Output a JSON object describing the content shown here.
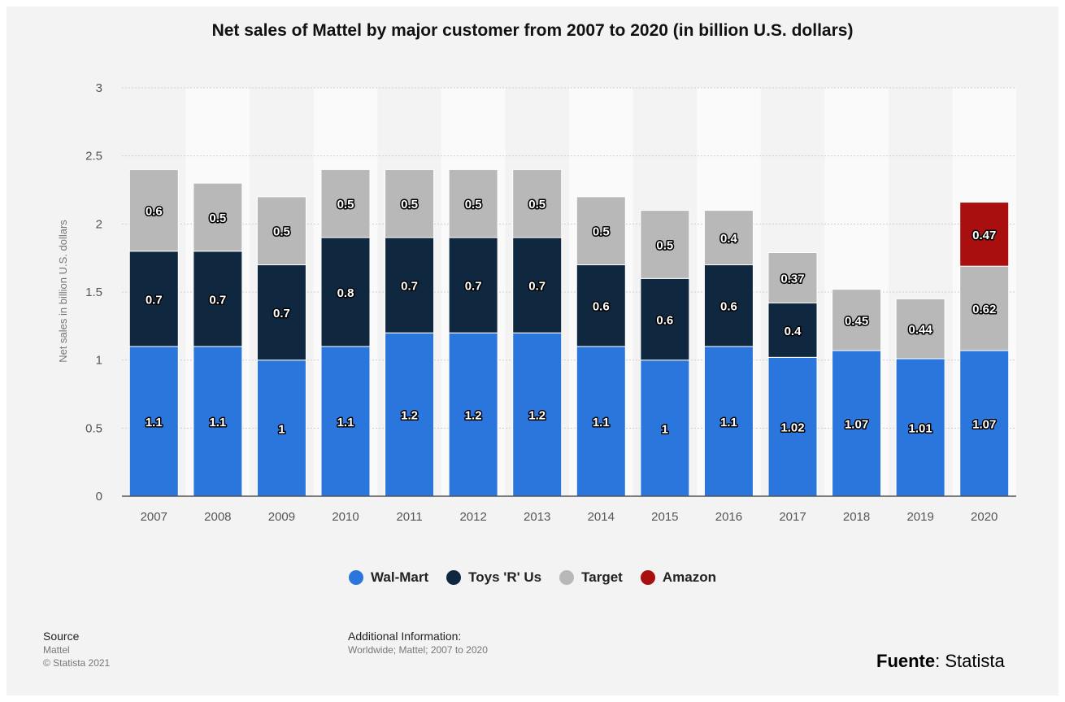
{
  "chart_data": {
    "type": "bar",
    "stacked": true,
    "title": "Net sales of Mattel by major customer from 2007 to 2020 (in billion U.S. dollars)",
    "xlabel": "",
    "ylabel": "Net sales in billion U.S. dollars",
    "ylim": [
      0,
      3
    ],
    "yticks": [
      "0",
      "0.5",
      "1",
      "1.5",
      "2",
      "2.5",
      "3"
    ],
    "grid": true,
    "legend_position": "bottom",
    "categories": [
      "2007",
      "2008",
      "2009",
      "2010",
      "2011",
      "2012",
      "2013",
      "2014",
      "2015",
      "2016",
      "2017",
      "2018",
      "2019",
      "2020"
    ],
    "series": [
      {
        "name": "Wal-Mart",
        "color": "#2a76dd",
        "values": [
          1.1,
          1.1,
          1,
          1.1,
          1.2,
          1.2,
          1.2,
          1.1,
          1,
          1.1,
          1.02,
          1.07,
          1.01,
          1.07
        ],
        "labels": [
          "1.1",
          "1.1",
          "1",
          "1.1",
          "1.2",
          "1.2",
          "1.2",
          "1.1",
          "1",
          "1.1",
          "1.02",
          "1.07",
          "1.01",
          "1.07"
        ]
      },
      {
        "name": "Toys 'R' Us",
        "color": "#0f2840",
        "values": [
          0.7,
          0.7,
          0.7,
          0.8,
          0.7,
          0.7,
          0.7,
          0.6,
          0.6,
          0.6,
          0.4,
          null,
          null,
          null
        ],
        "labels": [
          "0.7",
          "0.7",
          "0.7",
          "0.8",
          "0.7",
          "0.7",
          "0.7",
          "0.6",
          "0.6",
          "0.6",
          "0.4",
          "",
          "",
          ""
        ]
      },
      {
        "name": "Target",
        "color": "#b8b8b8",
        "values": [
          0.6,
          0.5,
          0.5,
          0.5,
          0.5,
          0.5,
          0.5,
          0.5,
          0.5,
          0.4,
          0.37,
          0.45,
          0.44,
          0.62
        ],
        "labels": [
          "0.6",
          "0.5",
          "0.5",
          "0.5",
          "0.5",
          "0.5",
          "0.5",
          "0.5",
          "0.5",
          "0.4",
          "0.37",
          "0.45",
          "0.44",
          "0.62"
        ]
      },
      {
        "name": "Amazon",
        "color": "#a90f0f",
        "values": [
          null,
          null,
          null,
          null,
          null,
          null,
          null,
          null,
          null,
          null,
          null,
          null,
          null,
          0.47
        ],
        "labels": [
          "",
          "",
          "",
          "",
          "",
          "",
          "",
          "",
          "",
          "",
          "",
          "",
          "",
          "0.47"
        ]
      }
    ]
  },
  "footer": {
    "source_heading": "Source",
    "source_line1": "Mattel",
    "source_line2": "© Statista 2021",
    "info_heading": "Additional Information:",
    "info_line": "Worldwide; Mattel; 2007 to 2020"
  },
  "fuente": {
    "label": "Fuente",
    "value": ": Statista"
  }
}
